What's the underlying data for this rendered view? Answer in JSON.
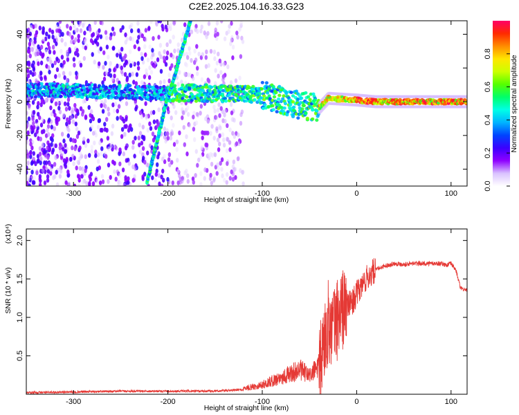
{
  "figure_title": "C2E2.2025.104.16.33.G23",
  "chart_data": [
    {
      "type": "heatmap",
      "xlabel": "Height of straight line (km)",
      "ylabel": "Frequency (Hz)",
      "xlim": [
        -350,
        117
      ],
      "ylim": [
        -50,
        48
      ],
      "xticks": [
        -300,
        -200,
        -100,
        0,
        100
      ],
      "yticks": [
        -40,
        -20,
        0,
        20,
        40
      ],
      "colorbar": {
        "label": "Normalized spectral amplitude",
        "range": [
          0,
          1
        ],
        "ticks": [
          0.0,
          0.2,
          0.4,
          0.6,
          0.8
        ],
        "colormap": [
          "#ffffff",
          "#d9c2ff",
          "#8f00ff",
          "#3b00ff",
          "#0044ff",
          "#00b4ff",
          "#00ffe6",
          "#00ff6a",
          "#55ff00",
          "#ccff00",
          "#ffe600",
          "#ff8c00",
          "#ff2a00",
          "#ff0066"
        ]
      },
      "features": [
        {
          "name": "steep line",
          "x": [
            -222,
            -198
          ],
          "y": [
            -48,
            8
          ]
        },
        {
          "name": "steep line",
          "x": [
            -200,
            -176
          ],
          "y": [
            2,
            48
          ]
        },
        {
          "name": "main band",
          "x": [
            -350,
            -200,
            -150,
            -100,
            -80,
            -60,
            -40,
            -30,
            0,
            20,
            60,
            117
          ],
          "y": [
            7,
            5,
            5,
            4,
            1,
            -2,
            -4,
            2,
            1,
            0,
            0,
            0
          ]
        }
      ]
    },
    {
      "type": "line",
      "xlabel": "Height of straight line (km)",
      "ylabel": "SNR (10 * v/v)",
      "yscale_label": "(x10⁴)",
      "xlim": [
        -350,
        117
      ],
      "ylim": [
        0,
        2.15
      ],
      "xticks": [
        -300,
        -200,
        -100,
        0,
        100
      ],
      "yticks": [
        0.5,
        1.0,
        1.5,
        2.0
      ],
      "color": "#e53935",
      "series": [
        {
          "x": [
            -350,
            -300,
            -250,
            -200,
            -150,
            -120,
            -100,
            -80,
            -70,
            -60,
            -50,
            -40,
            -35,
            -30,
            -25,
            -20,
            -15,
            -10,
            -5,
            0,
            10,
            20,
            30,
            40,
            50,
            60,
            70,
            80,
            90,
            95,
            100,
            105,
            110,
            117
          ],
          "values": [
            0.02,
            0.03,
            0.04,
            0.04,
            0.04,
            0.06,
            0.1,
            0.18,
            0.22,
            0.26,
            0.2,
            0.3,
            0.65,
            0.95,
            0.85,
            1.0,
            1.1,
            1.15,
            1.2,
            1.3,
            1.5,
            1.62,
            1.67,
            1.7,
            1.69,
            1.7,
            1.7,
            1.7,
            1.7,
            1.68,
            1.7,
            1.62,
            1.38,
            1.35
          ]
        }
      ]
    }
  ]
}
